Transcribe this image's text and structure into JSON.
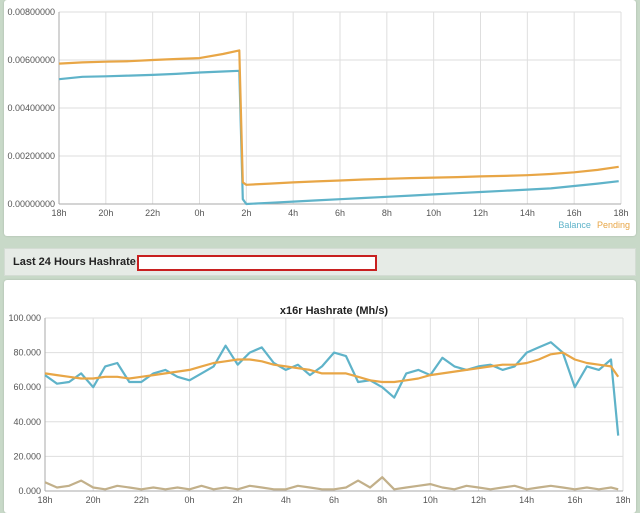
{
  "hashrate_header": {
    "label": "Last 24 Hours Hashrate:"
  },
  "chart_data": [
    {
      "type": "line",
      "title": "",
      "x_tick_labels": [
        "18h",
        "20h",
        "22h",
        "0h",
        "2h",
        "4h",
        "6h",
        "8h",
        "10h",
        "12h",
        "14h",
        "16h",
        "18h"
      ],
      "ylim": [
        0,
        0.008
      ],
      "y_tick_labels": [
        "0.00000000",
        "0.00200000",
        "0.00400000",
        "0.00600000",
        "0.00800000"
      ],
      "y_ticks": [
        0,
        0.002,
        0.004,
        0.006,
        0.008
      ],
      "grid": true,
      "legend": "bottom-right",
      "x": [
        18.0,
        19.0,
        20.0,
        21.0,
        22.0,
        23.0,
        24.0,
        25.0,
        25.7,
        25.85,
        26.0,
        27.0,
        28.0,
        29.0,
        30.0,
        31.0,
        32.0,
        33.0,
        34.0,
        35.0,
        36.0,
        37.0,
        38.0,
        39.0,
        40.0,
        41.0,
        41.9
      ],
      "series": [
        {
          "name": "Balance",
          "color": "#5fb3c9",
          "values": [
            0.0052,
            0.0053,
            0.00532,
            0.00535,
            0.00538,
            0.00542,
            0.00548,
            0.00552,
            0.00555,
            0.0002,
            0.0,
            5e-05,
            0.0001,
            0.00015,
            0.0002,
            0.00025,
            0.0003,
            0.00035,
            0.0004,
            0.00045,
            0.0005,
            0.00055,
            0.0006,
            0.00065,
            0.00075,
            0.00085,
            0.00095
          ]
        },
        {
          "name": "Pending",
          "color": "#e8a646",
          "values": [
            0.00585,
            0.0059,
            0.00593,
            0.00595,
            0.006,
            0.00604,
            0.00608,
            0.00625,
            0.0064,
            0.0009,
            0.0008,
            0.00085,
            0.0009,
            0.00094,
            0.00098,
            0.00102,
            0.00105,
            0.00108,
            0.0011,
            0.00112,
            0.00115,
            0.00117,
            0.0012,
            0.00125,
            0.00132,
            0.00142,
            0.00155
          ]
        }
      ]
    },
    {
      "type": "line",
      "title": "x16r Hashrate (Mh/s)",
      "x_tick_labels": [
        "18h",
        "20h",
        "22h",
        "0h",
        "2h",
        "4h",
        "6h",
        "8h",
        "10h",
        "12h",
        "14h",
        "16h",
        "18h"
      ],
      "ylim": [
        0,
        100
      ],
      "y_tick_labels": [
        "0.000",
        "20.000",
        "40.000",
        "60.000",
        "80.000",
        "100.000"
      ],
      "y_ticks": [
        0,
        20,
        40,
        60,
        80,
        100
      ],
      "grid": true,
      "x": [
        18.0,
        18.5,
        19.0,
        19.5,
        20.0,
        20.5,
        21.0,
        21.5,
        22.0,
        22.5,
        23.0,
        23.5,
        24.0,
        24.5,
        25.0,
        25.5,
        26.0,
        26.5,
        27.0,
        27.5,
        28.0,
        28.5,
        29.0,
        29.5,
        30.0,
        30.5,
        31.0,
        31.5,
        32.0,
        32.5,
        33.0,
        33.5,
        34.0,
        34.5,
        35.0,
        35.5,
        36.0,
        36.5,
        37.0,
        37.5,
        38.0,
        38.5,
        39.0,
        39.5,
        40.0,
        40.5,
        41.0,
        41.5,
        41.8
      ],
      "series": [
        {
          "name": "",
          "color": "#5fb3c9",
          "values": [
            67,
            62,
            63,
            68,
            60,
            72,
            74,
            63,
            63,
            68,
            70,
            66,
            64,
            68,
            72,
            84,
            73,
            80,
            83,
            74,
            70,
            73,
            67,
            72,
            80,
            78,
            63,
            64,
            60,
            54,
            68,
            70,
            67,
            77,
            72,
            70,
            72,
            73,
            70,
            72,
            80,
            83,
            86,
            80,
            60,
            72,
            70,
            76,
            32
          ]
        },
        {
          "name": "",
          "color": "#e8a646",
          "values": [
            68,
            67,
            66,
            65,
            65,
            66,
            66,
            65,
            66,
            67,
            68,
            69,
            70,
            72,
            74,
            75,
            76,
            76,
            75,
            73,
            72,
            71,
            70,
            68,
            68,
            68,
            66,
            64,
            63,
            63,
            64,
            65,
            67,
            68,
            69,
            70,
            71,
            72,
            73,
            73,
            74,
            76,
            79,
            80,
            76,
            74,
            73,
            72,
            66
          ]
        },
        {
          "name": "",
          "color": "#c2b08a",
          "values": [
            5,
            2,
            3,
            6,
            2,
            1,
            3,
            2,
            1,
            2,
            1,
            2,
            1,
            3,
            1,
            2,
            1,
            3,
            2,
            1,
            1,
            3,
            2,
            1,
            1,
            2,
            6,
            2,
            8,
            1,
            2,
            3,
            4,
            2,
            1,
            3,
            2,
            1,
            2,
            3,
            1,
            2,
            3,
            2,
            1,
            2,
            1,
            2,
            1
          ]
        }
      ]
    }
  ]
}
